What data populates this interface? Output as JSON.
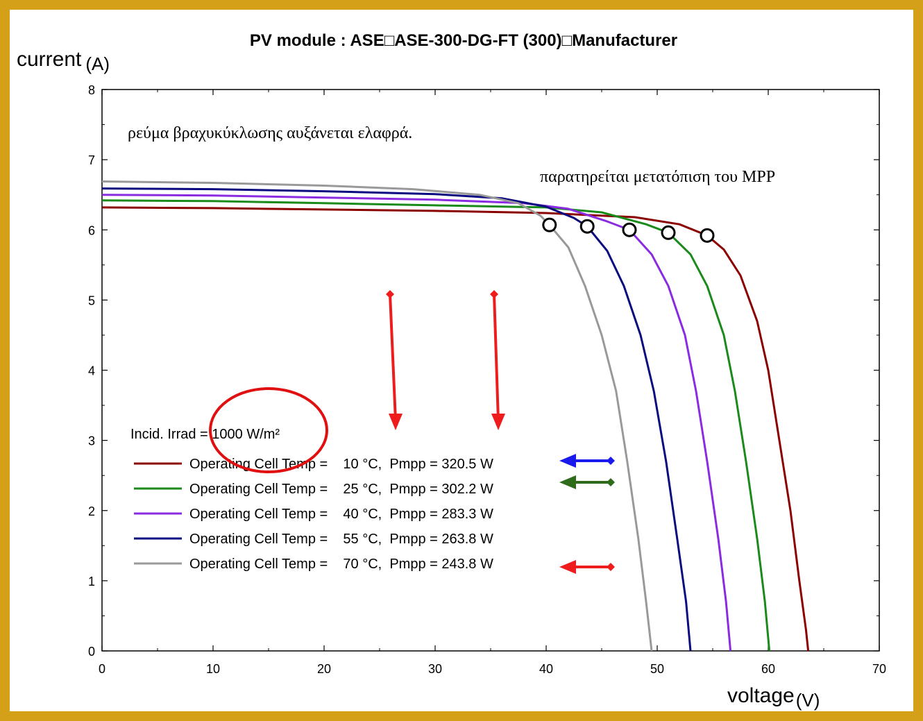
{
  "chart_data": {
    "type": "line",
    "title": "PV module :  ASE□ASE-300-DG-FT (300)□Manufacturer",
    "ylabel": "current",
    "ylabel_unit": "(A)",
    "xlabel": "voltage",
    "xlabel_unit": "(V)",
    "xlim": [
      0,
      70
    ],
    "ylim": [
      0,
      8
    ],
    "x_ticks": [
      0,
      10,
      20,
      30,
      40,
      50,
      60,
      70
    ],
    "y_ticks": [
      0,
      1,
      2,
      3,
      4,
      5,
      6,
      7,
      8
    ],
    "grid": false,
    "legend_title": "Incid. Irrad = 1000 W/m²",
    "series": [
      {
        "name": "Operating Cell Temp =    10 °C,  Pmpp = 320.5 W",
        "color": "#8b0000",
        "points": [
          [
            0,
            6.32
          ],
          [
            10,
            6.31
          ],
          [
            20,
            6.29
          ],
          [
            30,
            6.27
          ],
          [
            40,
            6.24
          ],
          [
            48,
            6.18
          ],
          [
            52,
            6.08
          ],
          [
            54.5,
            5.92
          ],
          [
            56,
            5.72
          ],
          [
            57.5,
            5.35
          ],
          [
            59,
            4.7
          ],
          [
            60,
            4.0
          ],
          [
            61,
            3.0
          ],
          [
            62,
            2.0
          ],
          [
            62.8,
            1.0
          ],
          [
            63.4,
            0.3
          ],
          [
            63.6,
            0
          ]
        ],
        "mpp": [
          54.5,
          5.92
        ]
      },
      {
        "name": "Operating Cell Temp =    25 °C,  Pmpp = 302.2 W",
        "color": "#1a8a1a",
        "points": [
          [
            0,
            6.42
          ],
          [
            10,
            6.41
          ],
          [
            20,
            6.38
          ],
          [
            30,
            6.35
          ],
          [
            40,
            6.32
          ],
          [
            45,
            6.25
          ],
          [
            49,
            6.08
          ],
          [
            51,
            5.96
          ],
          [
            53,
            5.65
          ],
          [
            54.5,
            5.2
          ],
          [
            56,
            4.5
          ],
          [
            57,
            3.7
          ],
          [
            58,
            2.7
          ],
          [
            59,
            1.6
          ],
          [
            59.7,
            0.7
          ],
          [
            60.1,
            0
          ]
        ],
        "mpp": [
          51,
          5.96
        ]
      },
      {
        "name": "Operating Cell Temp =    40 °C,  Pmpp = 283.3 W",
        "color": "#8a2be2",
        "points": [
          [
            0,
            6.5
          ],
          [
            10,
            6.49
          ],
          [
            20,
            6.46
          ],
          [
            30,
            6.43
          ],
          [
            38,
            6.38
          ],
          [
            42,
            6.3
          ],
          [
            45.5,
            6.12
          ],
          [
            47.5,
            6.0
          ],
          [
            49.5,
            5.65
          ],
          [
            51,
            5.2
          ],
          [
            52.5,
            4.5
          ],
          [
            53.5,
            3.7
          ],
          [
            54.5,
            2.7
          ],
          [
            55.5,
            1.6
          ],
          [
            56.2,
            0.7
          ],
          [
            56.6,
            0
          ]
        ],
        "mpp": [
          47.5,
          6.0
        ]
      },
      {
        "name": "Operating Cell Temp =    55 °C,  Pmpp = 263.8 W",
        "color": "#0a0a80",
        "points": [
          [
            0,
            6.59
          ],
          [
            10,
            6.58
          ],
          [
            20,
            6.55
          ],
          [
            30,
            6.51
          ],
          [
            36,
            6.45
          ],
          [
            40,
            6.33
          ],
          [
            42.5,
            6.17
          ],
          [
            43.7,
            6.05
          ],
          [
            45.5,
            5.7
          ],
          [
            47,
            5.2
          ],
          [
            48.5,
            4.5
          ],
          [
            49.7,
            3.7
          ],
          [
            50.8,
            2.7
          ],
          [
            51.8,
            1.6
          ],
          [
            52.6,
            0.7
          ],
          [
            53,
            0
          ]
        ],
        "mpp": [
          43.7,
          6.05
        ]
      },
      {
        "name": "Operating Cell Temp =    70 °C,  Pmpp = 243.8 W",
        "color": "#999999",
        "points": [
          [
            0,
            6.69
          ],
          [
            10,
            6.67
          ],
          [
            20,
            6.63
          ],
          [
            28,
            6.58
          ],
          [
            34,
            6.5
          ],
          [
            37.5,
            6.38
          ],
          [
            39.5,
            6.2
          ],
          [
            40.3,
            6.07
          ],
          [
            42,
            5.75
          ],
          [
            43.5,
            5.2
          ],
          [
            45,
            4.5
          ],
          [
            46.3,
            3.7
          ],
          [
            47.3,
            2.7
          ],
          [
            48.3,
            1.6
          ],
          [
            49,
            0.7
          ],
          [
            49.5,
            0
          ]
        ],
        "mpp": [
          40.3,
          6.07
        ]
      }
    ],
    "annotations": {
      "short_circuit_note": "ρεύμα βραχυκύκλωσης αυξάνεται ελαφρά.",
      "mpp_note": "παρατηρείται μετατόπιση του MPP",
      "arrow_color": "#ee1c1c",
      "circle_color": "#e01010",
      "legend_arrow_colors": [
        "#1a1aee",
        "#2e6b1a",
        "#ee1c1c"
      ]
    }
  }
}
